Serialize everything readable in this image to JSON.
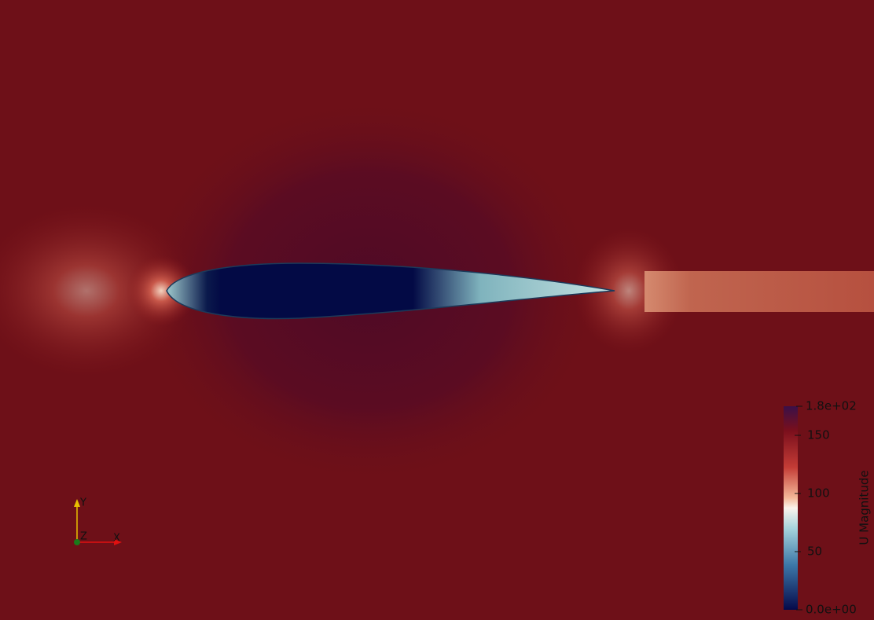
{
  "colorbar": {
    "title": "U Magnitude",
    "range": [
      {
        "value": 0,
        "label": "0.0e+00"
      },
      {
        "value": 175,
        "label": "1.8e+02"
      }
    ],
    "ticks": [
      50,
      100,
      150
    ]
  },
  "axes_triad": {
    "labels": [
      "Y",
      "Z",
      "X"
    ]
  }
}
